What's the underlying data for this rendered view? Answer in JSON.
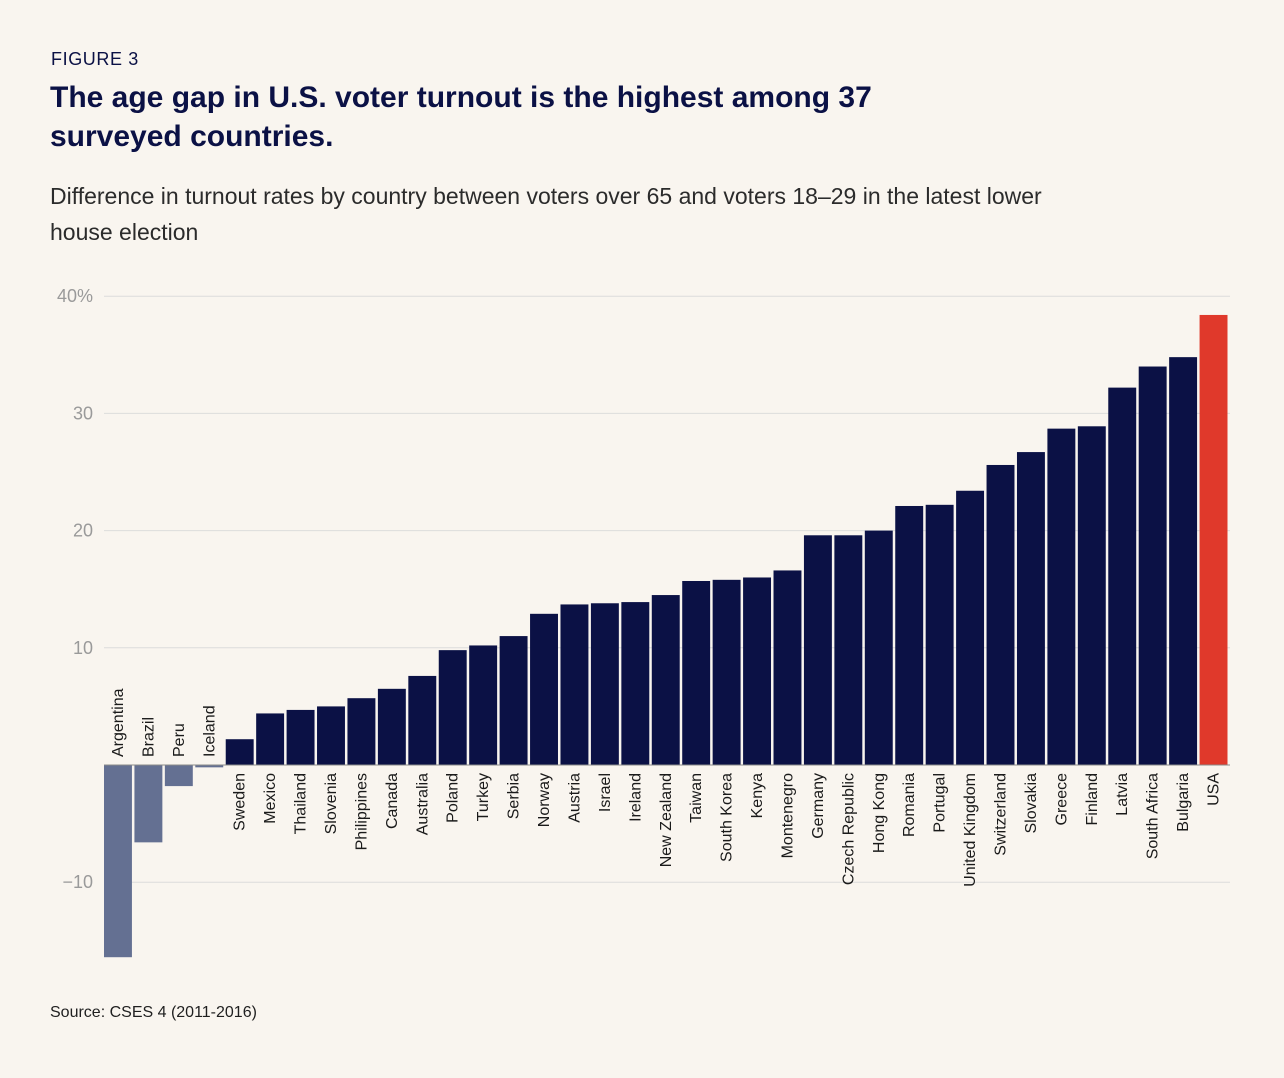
{
  "figure_label": "FIGURE 3",
  "title": "The age gap in U.S. voter turnout is the highest among 37 surveyed countries.",
  "subtitle": "Difference in turnout rates by country between voters over 65 and voters 18–29 in the latest lower house election",
  "source": "Source: CSES 4 (2011-2016)",
  "colors": {
    "background": "#f9f5ef",
    "positive_bar": "#0b1145",
    "negative_bar": "#647092",
    "highlight_bar": "#e0392b",
    "gridline": "#dcdcdc"
  },
  "chart_data": {
    "type": "bar",
    "title": "The age gap in U.S. voter turnout is the highest among 37 surveyed countries.",
    "ylabel": "",
    "xlabel": "",
    "ylim": [
      -16.4,
      40
    ],
    "yticks": [
      40,
      30,
      20,
      10,
      -10
    ],
    "ytick_labels": [
      "40%",
      "30",
      "20",
      "10",
      "−10"
    ],
    "grid": true,
    "highlight": "USA",
    "categories": [
      "Argentina",
      "Brazil",
      "Peru",
      "Iceland",
      "Sweden",
      "Mexico",
      "Thailand",
      "Slovenia",
      "Philippines",
      "Canada",
      "Australia",
      "Poland",
      "Turkey",
      "Serbia",
      "Norway",
      "Austria",
      "Israel",
      "Ireland",
      "New Zealand",
      "Taiwan",
      "South Korea",
      "Kenya",
      "Montenegro",
      "Germany",
      "Czech Republic",
      "Hong Kong",
      "Romania",
      "Portugal",
      "United Kingdom",
      "Switzerland",
      "Slovakia",
      "Greece",
      "Finland",
      "Latvia",
      "South Africa",
      "Bulgaria",
      "USA"
    ],
    "values": [
      -16.4,
      -6.6,
      -1.8,
      -0.2,
      2.2,
      4.4,
      4.7,
      5.0,
      5.7,
      6.5,
      7.6,
      9.8,
      10.2,
      11.0,
      12.9,
      13.7,
      13.8,
      13.9,
      14.5,
      15.7,
      15.8,
      16.0,
      16.6,
      19.6,
      19.6,
      20.0,
      22.1,
      22.2,
      23.4,
      25.6,
      26.7,
      28.7,
      28.9,
      32.2,
      34.0,
      34.8,
      38.4
    ]
  }
}
